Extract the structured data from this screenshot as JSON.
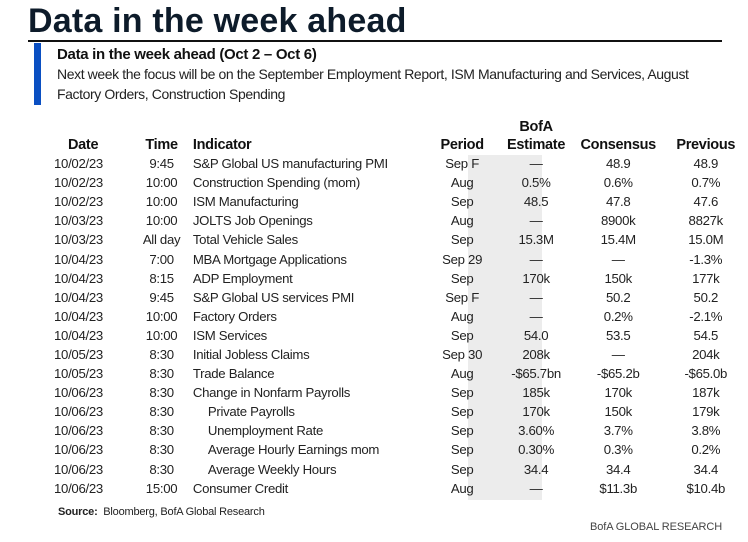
{
  "header": {
    "title": "Data in the week ahead",
    "subtitle": "Data in the week ahead (Oct 2 – Oct 6)",
    "description": "Next week the focus will be on the September Employment Report, ISM Manufacturing and Services, August Factory Orders, Construction Spending",
    "accent_color": "#0a4fc2"
  },
  "table": {
    "columns": {
      "date": "Date",
      "time": "Time",
      "indicator": "Indicator",
      "period": "Period",
      "estimate_line1": "BofA",
      "estimate_line2": "Estimate",
      "consensus": "Consensus",
      "previous": "Previous"
    },
    "rows": [
      {
        "date": "10/02/23",
        "time": "9:45",
        "indicator": "S&P Global US manufacturing PMI",
        "period": "Sep F",
        "estimate": "—",
        "consensus": "48.9",
        "previous": "48.9",
        "indent": false
      },
      {
        "date": "10/02/23",
        "time": "10:00",
        "indicator": "Construction Spending (mom)",
        "period": "Aug",
        "estimate": "0.5%",
        "consensus": "0.6%",
        "previous": "0.7%",
        "indent": false
      },
      {
        "date": "10/02/23",
        "time": "10:00",
        "indicator": "ISM Manufacturing",
        "period": "Sep",
        "estimate": "48.5",
        "consensus": "47.8",
        "previous": "47.6",
        "indent": false
      },
      {
        "date": "10/03/23",
        "time": "10:00",
        "indicator": "JOLTS Job Openings",
        "period": "Aug",
        "estimate": "—",
        "consensus": "8900k",
        "previous": "8827k",
        "indent": false
      },
      {
        "date": "10/03/23",
        "time": "All day",
        "indicator": "Total Vehicle Sales",
        "period": "Sep",
        "estimate": "15.3M",
        "consensus": "15.4M",
        "previous": "15.0M",
        "indent": false
      },
      {
        "date": "10/04/23",
        "time": "7:00",
        "indicator": "MBA Mortgage Applications",
        "period": "Sep 29",
        "estimate": "—",
        "consensus": "—",
        "previous": "-1.3%",
        "indent": false
      },
      {
        "date": "10/04/23",
        "time": "8:15",
        "indicator": "ADP Employment",
        "period": "Sep",
        "estimate": "170k",
        "consensus": "150k",
        "previous": "177k",
        "indent": false
      },
      {
        "date": "10/04/23",
        "time": "9:45",
        "indicator": "S&P Global US services PMI",
        "period": "Sep F",
        "estimate": "—",
        "consensus": "50.2",
        "previous": "50.2",
        "indent": false
      },
      {
        "date": "10/04/23",
        "time": "10:00",
        "indicator": "Factory Orders",
        "period": "Aug",
        "estimate": "—",
        "consensus": "0.2%",
        "previous": "-2.1%",
        "indent": false
      },
      {
        "date": "10/04/23",
        "time": "10:00",
        "indicator": "ISM Services",
        "period": "Sep",
        "estimate": "54.0",
        "consensus": "53.5",
        "previous": "54.5",
        "indent": false
      },
      {
        "date": "10/05/23",
        "time": "8:30",
        "indicator": "Initial Jobless Claims",
        "period": "Sep 30",
        "estimate": "208k",
        "consensus": "—",
        "previous": "204k",
        "indent": false
      },
      {
        "date": "10/05/23",
        "time": "8:30",
        "indicator": "Trade Balance",
        "period": "Aug",
        "estimate": "-$65.7bn",
        "consensus": "-$65.2b",
        "previous": "-$65.0b",
        "indent": false
      },
      {
        "date": "10/06/23",
        "time": "8:30",
        "indicator": "Change in Nonfarm Payrolls",
        "period": "Sep",
        "estimate": "185k",
        "consensus": "170k",
        "previous": "187k",
        "indent": false
      },
      {
        "date": "10/06/23",
        "time": "8:30",
        "indicator": "Private Payrolls",
        "period": "Sep",
        "estimate": "170k",
        "consensus": "150k",
        "previous": "179k",
        "indent": true
      },
      {
        "date": "10/06/23",
        "time": "8:30",
        "indicator": "Unemployment Rate",
        "period": "Sep",
        "estimate": "3.60%",
        "consensus": "3.7%",
        "previous": "3.8%",
        "indent": true
      },
      {
        "date": "10/06/23",
        "time": "8:30",
        "indicator": "Average Hourly Earnings mom",
        "period": "Sep",
        "estimate": "0.30%",
        "consensus": "0.3%",
        "previous": "0.2%",
        "indent": true
      },
      {
        "date": "10/06/23",
        "time": "8:30",
        "indicator": "Average Weekly Hours",
        "period": "Sep",
        "estimate": "34.4",
        "consensus": "34.4",
        "previous": "34.4",
        "indent": true
      },
      {
        "date": "10/06/23",
        "time": "15:00",
        "indicator": "Consumer Credit",
        "period": "Aug",
        "estimate": "—",
        "consensus": "$11.3b",
        "previous": "$10.4b",
        "indent": false
      }
    ]
  },
  "footer": {
    "source_label": "Source:",
    "source_text": "Bloomberg, BofA Global Research",
    "brand": "BofA GLOBAL RESEARCH"
  }
}
